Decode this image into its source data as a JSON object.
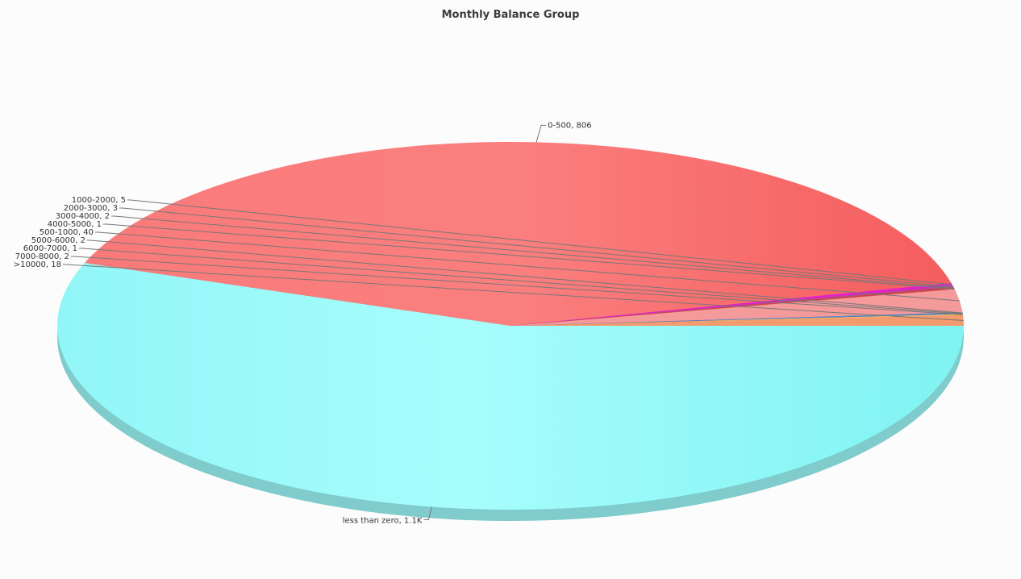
{
  "chart_data": {
    "type": "pie",
    "title": "Monthly Balance Group",
    "slices": [
      {
        "label": "less than zero",
        "value": 1100,
        "display": "less than zero, 1.1K",
        "color": "#9cf7f8"
      },
      {
        "label": "0-500",
        "value": 806,
        "display": "0-500, 806",
        "color": "#f97676"
      },
      {
        "label": "1000-2000",
        "value": 5,
        "display": "1000-2000, 5",
        "color": "#e31fd0"
      },
      {
        "label": "2000-3000",
        "value": 3,
        "display": "2000-3000, 3",
        "color": "#b34a86"
      },
      {
        "label": "3000-4000",
        "value": 2,
        "display": "3000-4000, 2",
        "color": "#d93a3a"
      },
      {
        "label": "4000-5000",
        "value": 1,
        "display": "4000-5000, 1",
        "color": "#c95c5c"
      },
      {
        "label": "500-1000",
        "value": 40,
        "display": "500-1000, 40",
        "color": "#f59a9a"
      },
      {
        "label": "5000-6000",
        "value": 2,
        "display": "5000-6000, 2",
        "color": "#5a8fd6"
      },
      {
        "label": "6000-7000",
        "value": 1,
        "display": "6000-7000, 1",
        "color": "#3a6fb0"
      },
      {
        "label": "7000-8000",
        "value": 2,
        "display": "7000-8000, 2",
        "color": "#f4c06a"
      },
      {
        "label": ">10000",
        "value": 18,
        "display": ">10000, 18",
        "color": "#f39a6e"
      }
    ],
    "start_angle_deg": 0,
    "direction": "clockwise",
    "style": "3d"
  }
}
